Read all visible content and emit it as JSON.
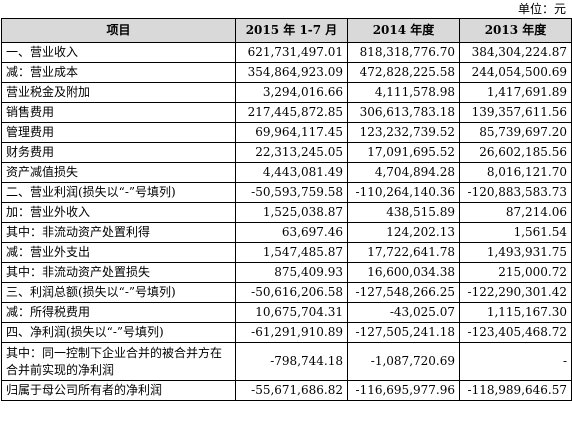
{
  "unit": "单位：元",
  "headers": [
    "项目",
    "2015 年 1-7 月",
    "2014 年度",
    "2013 年度"
  ],
  "rows": [
    {
      "label": "一、营业收入",
      "values": [
        "621,731,497.01",
        "818,318,776.70",
        "384,304,224.87"
      ]
    },
    {
      "label": "减：营业成本",
      "values": [
        "354,864,923.09",
        "472,828,225.58",
        "244,054,500.69"
      ]
    },
    {
      "label": "营业税金及附加",
      "values": [
        "3,294,016.66",
        "4,111,578.98",
        "1,417,691.89"
      ]
    },
    {
      "label": "销售费用",
      "values": [
        "217,445,872.85",
        "306,613,783.18",
        "139,357,611.56"
      ]
    },
    {
      "label": "管理费用",
      "values": [
        "69,964,117.45",
        "123,232,739.52",
        "85,739,697.20"
      ]
    },
    {
      "label": "财务费用",
      "values": [
        "22,313,245.05",
        "17,091,695.52",
        "26,602,185.56"
      ]
    },
    {
      "label": "资产减值损失",
      "values": [
        "4,443,081.49",
        "4,704,894.28",
        "8,016,121.70"
      ]
    },
    {
      "label": "二、营业利润(损失以“-”号填列)",
      "values": [
        "-50,593,759.58",
        "-110,264,140.36",
        "-120,883,583.73"
      ]
    },
    {
      "label": "加：营业外收入",
      "values": [
        "1,525,038.87",
        "438,515.89",
        "87,214.06"
      ]
    },
    {
      "label": "其中：非流动资产处置利得",
      "values": [
        "63,697.46",
        "124,202.13",
        "1,561.54"
      ]
    },
    {
      "label": "减：营业外支出",
      "values": [
        "1,547,485.87",
        "17,722,641.78",
        "1,493,931.75"
      ]
    },
    {
      "label": "其中：非流动资产处置损失",
      "values": [
        "875,409.93",
        "16,600,034.38",
        "215,000.72"
      ]
    },
    {
      "label": "三、利润总额(损失以“-”号填列)",
      "values": [
        "-50,616,206.58",
        "-127,548,266.25",
        "-122,290,301.42"
      ]
    },
    {
      "label": "减：所得税费用",
      "values": [
        "10,675,704.31",
        "-43,025.07",
        "1,115,167.30"
      ]
    },
    {
      "label": "四、净利润(损失以“-”号填列)",
      "values": [
        "-61,291,910.89",
        "-127,505,241.18",
        "-123,405,468.72"
      ]
    },
    {
      "label": "其中：同一控制下企业合并的被合并方在合并前实现的净利润",
      "values": [
        "-798,744.18",
        "-1,087,720.69",
        "-"
      ],
      "tall": true
    },
    {
      "label": "归属于母公司所有者的净利润",
      "values": [
        "-55,671,686.82",
        "-116,695,977.96",
        "-118,989,646.57"
      ]
    }
  ]
}
